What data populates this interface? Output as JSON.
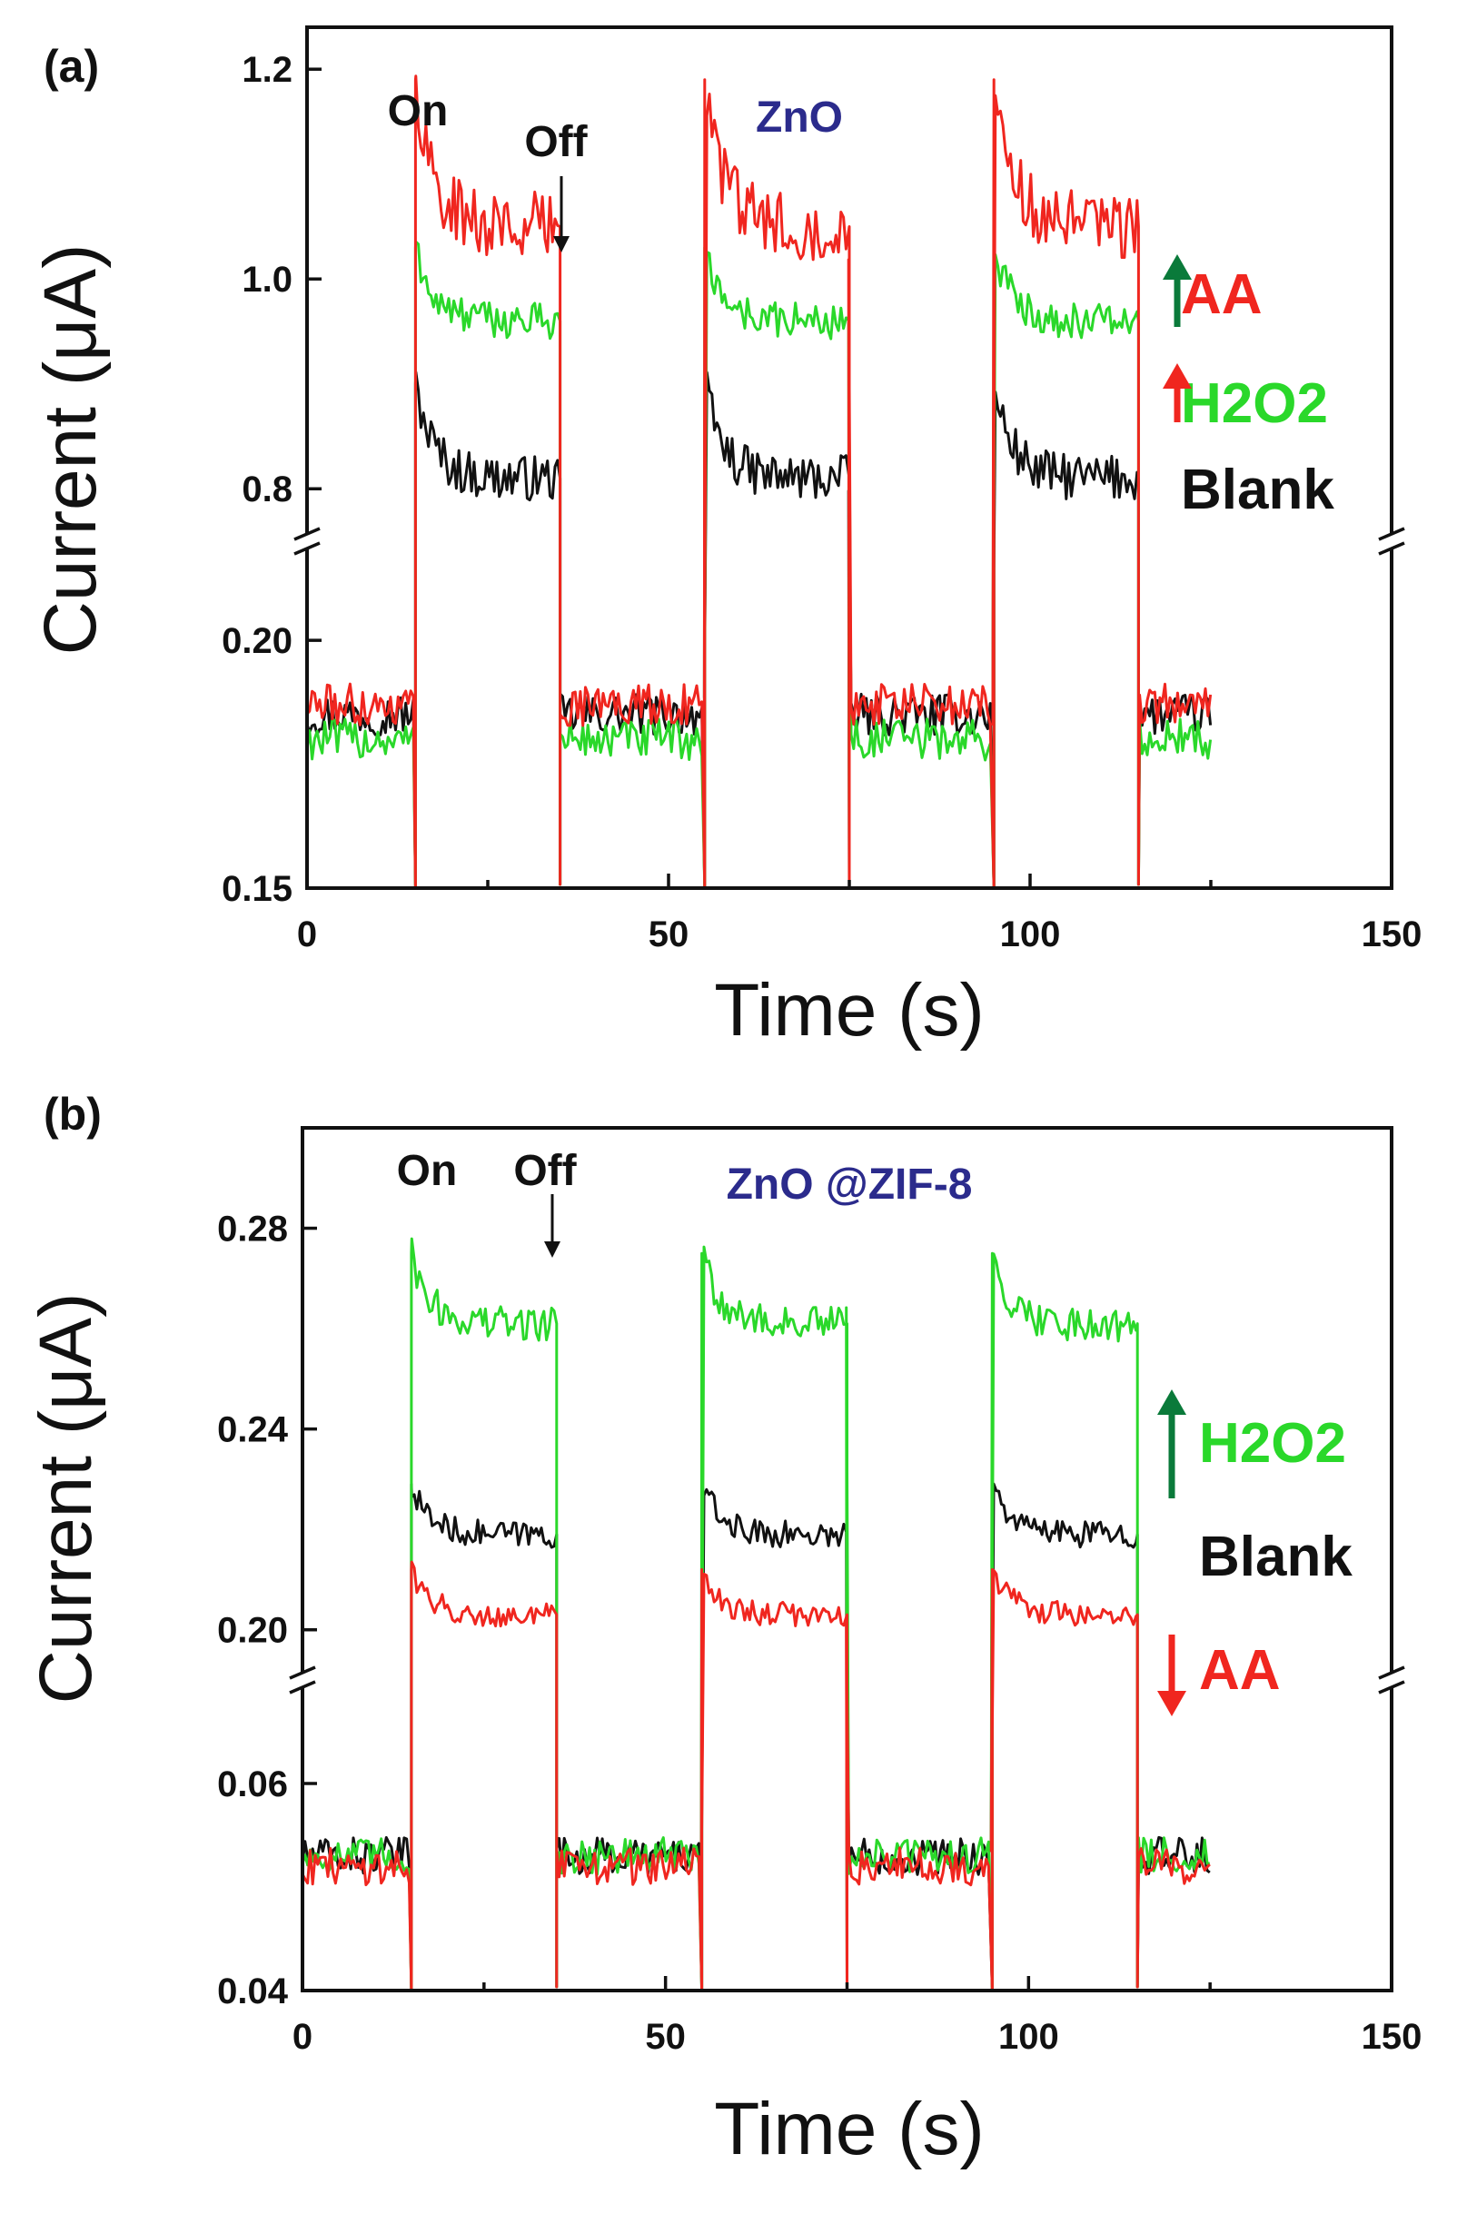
{
  "chart_data": [
    {
      "panel_label": "(a)",
      "type": "line",
      "title": "ZnO",
      "xlabel": "Time (s)",
      "ylabel": "Current (μA)",
      "xlim": [
        0,
        150
      ],
      "xticks": [
        "0",
        "50",
        "100",
        "150"
      ],
      "y_broken": true,
      "y_lower_range": [
        0.15,
        0.22
      ],
      "y_upper_range": [
        0.75,
        1.24
      ],
      "yticks": [
        "0.15",
        "0.20",
        "0.8",
        "1.0",
        "1.2"
      ],
      "light_on_at": [
        15,
        55,
        95
      ],
      "light_off_at": [
        35,
        75,
        115
      ],
      "end_time": 125,
      "annotations": {
        "on": "On",
        "off": "Off"
      },
      "arrow_annotation": {
        "label": "Off",
        "x": 35
      },
      "colors": {
        "title": "#2b2b8c",
        "off_arrow": "#111111"
      },
      "series": [
        {
          "name": "Blank",
          "color": "#111111",
          "dark_level": 0.185,
          "on_peak": 0.9,
          "on_steady": 0.81,
          "arrow": "",
          "arrow_color": ""
        },
        {
          "name": "H2O2",
          "color": "#2ad82a",
          "dark_level": 0.18,
          "on_peak": 1.03,
          "on_steady": 0.96,
          "arrow": "up",
          "arrow_color": "#0a7a3a"
        },
        {
          "name": "AA",
          "color": "#f0261f",
          "dark_level": 0.187,
          "on_peak": 1.19,
          "on_steady": 1.05,
          "arrow": "up",
          "arrow_color": "#f0261f"
        }
      ],
      "legend_order": [
        "AA",
        "H2O2",
        "Blank"
      ]
    },
    {
      "panel_label": "(b)",
      "type": "line",
      "title": "ZnO @ZIF-8",
      "xlabel": "Time (s)",
      "ylabel": "Current (μA)",
      "xlim": [
        0,
        150
      ],
      "xticks": [
        "0",
        "50",
        "100",
        "150"
      ],
      "y_broken": true,
      "y_lower_range": [
        0.04,
        0.07
      ],
      "y_upper_range": [
        0.19,
        0.3
      ],
      "yticks": [
        "0.04",
        "0.06",
        "0.20",
        "0.24",
        "0.28"
      ],
      "light_on_at": [
        15,
        55,
        95
      ],
      "light_off_at": [
        35,
        75,
        115
      ],
      "end_time": 125,
      "annotations": {
        "on": "On",
        "off": "Off"
      },
      "arrow_annotation": {
        "label": "Off",
        "x": 35
      },
      "colors": {
        "title": "#2b2b8c",
        "off_arrow": "#111111"
      },
      "series": [
        {
          "name": "Blank",
          "color": "#111111",
          "dark_level": 0.053,
          "on_peak": 0.229,
          "on_steady": 0.219,
          "arrow": "",
          "arrow_color": ""
        },
        {
          "name": "H2O2",
          "color": "#2ad82a",
          "dark_level": 0.053,
          "on_peak": 0.275,
          "on_steady": 0.261,
          "arrow": "up",
          "arrow_color": "#0a7a3a"
        },
        {
          "name": "AA",
          "color": "#f0261f",
          "dark_level": 0.052,
          "on_peak": 0.212,
          "on_steady": 0.203,
          "arrow": "down",
          "arrow_color": "#f0261f"
        }
      ],
      "legend_order": [
        "H2O2",
        "Blank",
        "AA"
      ]
    }
  ]
}
